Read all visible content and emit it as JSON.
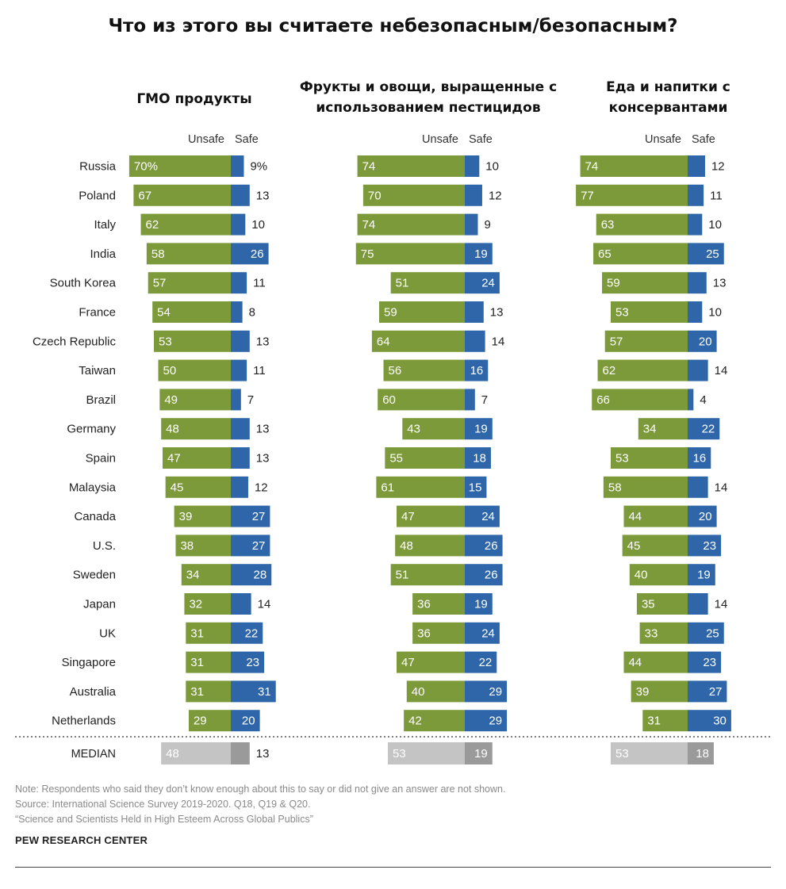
{
  "title": "Что из этого вы считаете небезопасным/безопасным?",
  "colors": {
    "unsafe": "#7d9a3a",
    "safe": "#2e66a9",
    "median_unsafe": "#c4c4c4",
    "median_safe": "#9a9a9a"
  },
  "chart_data": {
    "type": "bar",
    "orientation": "horizontal-diverging",
    "legend": {
      "unsafe": "Unsafe",
      "safe": "Safe"
    },
    "categories": [
      "Russia",
      "Poland",
      "Italy",
      "India",
      "South Korea",
      "France",
      "Czech Republic",
      "Taiwan",
      "Brazil",
      "Germany",
      "Spain",
      "Malaysia",
      "Canada",
      "U.S.",
      "Sweden",
      "Japan",
      "UK",
      "Singapore",
      "Australia",
      "Netherlands"
    ],
    "median_label": "MEDIAN",
    "panels": [
      {
        "title_lines": [
          "ГМО продукты"
        ],
        "unsafe": [
          70,
          67,
          62,
          58,
          57,
          54,
          53,
          50,
          49,
          48,
          47,
          45,
          39,
          38,
          34,
          32,
          31,
          31,
          31,
          29
        ],
        "safe": [
          9,
          13,
          10,
          26,
          11,
          8,
          13,
          11,
          7,
          13,
          13,
          12,
          27,
          27,
          28,
          14,
          22,
          23,
          31,
          20
        ],
        "median": {
          "unsafe": 48,
          "safe": 13
        },
        "first_row_labels": {
          "unsafe": "70%",
          "safe": "9%"
        }
      },
      {
        "title_lines": [
          "Фрукты и овощи, выращенные с",
          "использованием пестицидов"
        ],
        "unsafe": [
          74,
          70,
          74,
          75,
          51,
          59,
          64,
          56,
          60,
          43,
          55,
          61,
          47,
          48,
          51,
          36,
          36,
          47,
          40,
          42
        ],
        "safe": [
          10,
          12,
          9,
          19,
          24,
          13,
          14,
          16,
          7,
          19,
          18,
          15,
          24,
          26,
          26,
          19,
          24,
          22,
          29,
          29
        ],
        "median": {
          "unsafe": 53,
          "safe": 19
        }
      },
      {
        "title_lines": [
          "Еда и напитки с",
          "консервантами"
        ],
        "unsafe": [
          74,
          77,
          63,
          65,
          59,
          53,
          57,
          62,
          66,
          34,
          53,
          58,
          44,
          45,
          40,
          35,
          33,
          44,
          39,
          31
        ],
        "safe": [
          12,
          11,
          10,
          25,
          13,
          10,
          20,
          14,
          4,
          22,
          16,
          14,
          20,
          23,
          19,
          14,
          25,
          23,
          27,
          30
        ],
        "median": {
          "unsafe": 53,
          "safe": 18
        }
      }
    ]
  },
  "note": "Note: Respondents who said they don’t know enough about this to say or did not give an answer are not shown.",
  "source": "Source: International Science Survey 2019-2020. Q18, Q19 & Q20.",
  "report": "“Science and Scientists Held in High Esteem Across Global Publics”",
  "brand": "PEW RESEARCH CENTER"
}
